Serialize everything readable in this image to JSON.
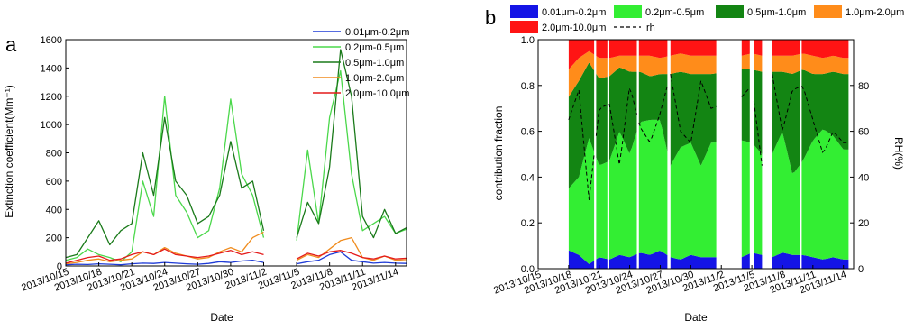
{
  "figure": {
    "panel_a_label": "a",
    "panel_b_label": "b"
  },
  "chart_data": [
    {
      "type": "line",
      "panel": "a",
      "xlabel": "Date",
      "ylabel": "Extinction coefficient(Mm⁻¹)",
      "ylim": [
        0,
        1600
      ],
      "yticks": [
        0,
        200,
        400,
        600,
        800,
        1000,
        1200,
        1400,
        1600
      ],
      "xlim": [
        "2013/10/15",
        "2013/11/15"
      ],
      "xticks": [
        "2013/10/15",
        "2013/10/18",
        "2013/10/21",
        "2013/10/24",
        "2013/10/27",
        "2013/10/30",
        "2013/11/2",
        "2013/11/5",
        "2013/11/8",
        "2013/11/11",
        "2013/11/14"
      ],
      "legend_position": "top-right",
      "series": [
        {
          "name": "0.01μm-0.2μm",
          "color": "#1f3bd6",
          "points": [
            [
              "2013/10/15",
              8
            ],
            [
              "2013/10/16",
              12
            ],
            [
              "2013/10/17",
              10
            ],
            [
              "2013/10/18",
              15
            ],
            [
              "2013/10/19",
              12
            ],
            [
              "2013/10/20",
              8
            ],
            [
              "2013/10/21",
              15
            ],
            [
              "2013/10/22",
              20
            ],
            [
              "2013/10/23",
              18
            ],
            [
              "2013/10/24",
              25
            ],
            [
              "2013/10/25",
              20
            ],
            [
              "2013/10/26",
              15
            ],
            [
              "2013/10/27",
              12
            ],
            [
              "2013/10/28",
              18
            ],
            [
              "2013/10/29",
              30
            ],
            [
              "2013/10/30",
              25
            ],
            [
              "2013/10/31",
              35
            ],
            [
              "2013/11/1",
              40
            ],
            [
              "2013/11/2",
              25
            ],
            [
              "2013/11/5",
              15
            ],
            [
              "2013/11/6",
              30
            ],
            [
              "2013/11/7",
              40
            ],
            [
              "2013/11/8",
              80
            ],
            [
              "2013/11/9",
              100
            ],
            [
              "2013/11/10",
              40
            ],
            [
              "2013/11/11",
              30
            ],
            [
              "2013/11/12",
              20
            ],
            [
              "2013/11/13",
              25
            ],
            [
              "2013/11/14",
              20
            ],
            [
              "2013/11/15",
              18
            ]
          ]
        },
        {
          "name": "0.2μm-0.5μm",
          "color": "#4bd84b",
          "points": [
            [
              "2013/10/15",
              40
            ],
            [
              "2013/10/16",
              60
            ],
            [
              "2013/10/17",
              120
            ],
            [
              "2013/10/18",
              80
            ],
            [
              "2013/10/19",
              60
            ],
            [
              "2013/10/20",
              30
            ],
            [
              "2013/10/21",
              100
            ],
            [
              "2013/10/22",
              600
            ],
            [
              "2013/10/23",
              350
            ],
            [
              "2013/10/24",
              1200
            ],
            [
              "2013/10/25",
              500
            ],
            [
              "2013/10/26",
              380
            ],
            [
              "2013/10/27",
              200
            ],
            [
              "2013/10/28",
              250
            ],
            [
              "2013/10/29",
              550
            ],
            [
              "2013/10/30",
              1180
            ],
            [
              "2013/10/31",
              650
            ],
            [
              "2013/11/1",
              500
            ],
            [
              "2013/11/2",
              200
            ],
            [
              "2013/11/5",
              180
            ],
            [
              "2013/11/6",
              820
            ],
            [
              "2013/11/7",
              300
            ],
            [
              "2013/11/8",
              1050
            ],
            [
              "2013/11/9",
              1380
            ],
            [
              "2013/11/10",
              650
            ],
            [
              "2013/11/11",
              250
            ],
            [
              "2013/11/12",
              300
            ],
            [
              "2013/11/13",
              350
            ],
            [
              "2013/11/14",
              230
            ],
            [
              "2013/11/15",
              260
            ]
          ]
        },
        {
          "name": "0.5μm-1.0μm",
          "color": "#1a7a1a",
          "points": [
            [
              "2013/10/15",
              60
            ],
            [
              "2013/10/16",
              80
            ],
            [
              "2013/10/17",
              200
            ],
            [
              "2013/10/18",
              320
            ],
            [
              "2013/10/19",
              150
            ],
            [
              "2013/10/20",
              250
            ],
            [
              "2013/10/21",
              300
            ],
            [
              "2013/10/22",
              800
            ],
            [
              "2013/10/23",
              500
            ],
            [
              "2013/10/24",
              1050
            ],
            [
              "2013/10/25",
              600
            ],
            [
              "2013/10/26",
              500
            ],
            [
              "2013/10/27",
              300
            ],
            [
              "2013/10/28",
              350
            ],
            [
              "2013/10/29",
              500
            ],
            [
              "2013/10/30",
              880
            ],
            [
              "2013/10/31",
              550
            ],
            [
              "2013/11/1",
              600
            ],
            [
              "2013/11/2",
              250
            ],
            [
              "2013/11/5",
              200
            ],
            [
              "2013/11/6",
              450
            ],
            [
              "2013/11/7",
              300
            ],
            [
              "2013/11/8",
              700
            ],
            [
              "2013/11/9",
              1530
            ],
            [
              "2013/11/10",
              1200
            ],
            [
              "2013/11/11",
              350
            ],
            [
              "2013/11/12",
              200
            ],
            [
              "2013/11/13",
              400
            ],
            [
              "2013/11/14",
              230
            ],
            [
              "2013/11/15",
              270
            ]
          ]
        },
        {
          "name": "1.0μm-2.0μm",
          "color": "#f08c1e",
          "points": [
            [
              "2013/10/15",
              15
            ],
            [
              "2013/10/16",
              25
            ],
            [
              "2013/10/17",
              40
            ],
            [
              "2013/10/18",
              50
            ],
            [
              "2013/10/19",
              30
            ],
            [
              "2013/10/20",
              40
            ],
            [
              "2013/10/21",
              50
            ],
            [
              "2013/10/22",
              100
            ],
            [
              "2013/10/23",
              80
            ],
            [
              "2013/10/24",
              130
            ],
            [
              "2013/10/25",
              90
            ],
            [
              "2013/10/26",
              70
            ],
            [
              "2013/10/27",
              50
            ],
            [
              "2013/10/28",
              60
            ],
            [
              "2013/10/29",
              100
            ],
            [
              "2013/10/30",
              130
            ],
            [
              "2013/10/31",
              100
            ],
            [
              "2013/11/1",
              200
            ],
            [
              "2013/11/2",
              240
            ],
            [
              "2013/11/5",
              40
            ],
            [
              "2013/11/6",
              80
            ],
            [
              "2013/11/7",
              60
            ],
            [
              "2013/11/8",
              120
            ],
            [
              "2013/11/9",
              180
            ],
            [
              "2013/11/10",
              200
            ],
            [
              "2013/11/11",
              60
            ],
            [
              "2013/11/12",
              40
            ],
            [
              "2013/11/13",
              70
            ],
            [
              "2013/11/14",
              40
            ],
            [
              "2013/11/15",
              45
            ]
          ]
        },
        {
          "name": "2.0μm-10.0μm",
          "color": "#e41a1a",
          "points": [
            [
              "2013/10/15",
              20
            ],
            [
              "2013/10/16",
              40
            ],
            [
              "2013/10/17",
              60
            ],
            [
              "2013/10/18",
              70
            ],
            [
              "2013/10/19",
              40
            ],
            [
              "2013/10/20",
              50
            ],
            [
              "2013/10/21",
              80
            ],
            [
              "2013/10/22",
              100
            ],
            [
              "2013/10/23",
              80
            ],
            [
              "2013/10/24",
              120
            ],
            [
              "2013/10/25",
              80
            ],
            [
              "2013/10/26",
              70
            ],
            [
              "2013/10/27",
              60
            ],
            [
              "2013/10/28",
              70
            ],
            [
              "2013/10/29",
              90
            ],
            [
              "2013/10/30",
              110
            ],
            [
              "2013/10/31",
              80
            ],
            [
              "2013/11/1",
              100
            ],
            [
              "2013/11/2",
              80
            ],
            [
              "2013/11/5",
              50
            ],
            [
              "2013/11/6",
              90
            ],
            [
              "2013/11/7",
              70
            ],
            [
              "2013/11/8",
              100
            ],
            [
              "2013/11/9",
              110
            ],
            [
              "2013/11/10",
              90
            ],
            [
              "2013/11/11",
              60
            ],
            [
              "2013/11/12",
              50
            ],
            [
              "2013/11/13",
              70
            ],
            [
              "2013/11/14",
              50
            ],
            [
              "2013/11/15",
              55
            ]
          ]
        }
      ]
    },
    {
      "type": "area",
      "stacked": true,
      "panel": "b",
      "xlabel": "Date",
      "ylabel": "contribution fraction",
      "ylim": [
        0,
        1.0
      ],
      "yticks": [
        0.0,
        0.2,
        0.4,
        0.6,
        0.8,
        1.0
      ],
      "y2label": "RH(%)",
      "y2lim": [
        0,
        100
      ],
      "y2ticks": [
        0,
        20,
        40,
        60,
        80
      ],
      "xlim": [
        "2013/10/15",
        "2013/11/15"
      ],
      "xticks": [
        "2013/10/15",
        "2013/10/18",
        "2013/10/21",
        "2013/10/24",
        "2013/10/27",
        "2013/10/30",
        "2013/11/2",
        "2013/11/5",
        "2013/11/8",
        "2013/11/11",
        "2013/11/14"
      ],
      "legend_position": "top",
      "data_segments": [
        [
          "2013/10/18",
          "2013/10/20.5"
        ],
        [
          "2013/10/20.7",
          "2013/10/21.8"
        ],
        [
          "2013/10/22",
          "2013/10/24.7"
        ],
        [
          "2013/10/24.9",
          "2013/10/27.7"
        ],
        [
          "2013/10/28",
          "2013/11/1.5"
        ],
        [
          "2013/11/4",
          "2013/11/4.8"
        ],
        [
          "2013/11/5.2",
          "2013/11/6"
        ],
        [
          "2013/11/7",
          "2013/11/9.7"
        ],
        [
          "2013/11/9.9",
          "2013/11/14.5"
        ]
      ],
      "dates": [
        "2013/10/18",
        "2013/10/19",
        "2013/10/20",
        "2013/10/21",
        "2013/10/22",
        "2013/10/23",
        "2013/10/24",
        "2013/10/25",
        "2013/10/26",
        "2013/10/27",
        "2013/10/28",
        "2013/10/29",
        "2013/10/30",
        "2013/10/31",
        "2013/11/1",
        "2013/11/4",
        "2013/11/5",
        "2013/11/6",
        "2013/11/7",
        "2013/11/8",
        "2013/11/9",
        "2013/11/10",
        "2013/11/11",
        "2013/11/12",
        "2013/11/13",
        "2013/11/14"
      ],
      "series": [
        {
          "name": "0.01μm-0.2μm",
          "color": "#1414e6",
          "values": [
            0.08,
            0.06,
            0.02,
            0.05,
            0.04,
            0.06,
            0.05,
            0.07,
            0.06,
            0.08,
            0.05,
            0.04,
            0.06,
            0.05,
            0.05,
            0.05,
            0.07,
            0.06,
            0.05,
            0.07,
            0.06,
            0.06,
            0.05,
            0.04,
            0.05,
            0.04
          ]
        },
        {
          "name": "0.2μm-0.5μm",
          "color": "#33ee33",
          "values": [
            0.27,
            0.34,
            0.55,
            0.4,
            0.43,
            0.54,
            0.45,
            0.57,
            0.59,
            0.57,
            0.4,
            0.49,
            0.49,
            0.4,
            0.5,
            0.51,
            0.48,
            0.44,
            0.45,
            0.53,
            0.35,
            0.41,
            0.51,
            0.57,
            0.53,
            0.48
          ]
        },
        {
          "name": "0.5μm-1.0μm",
          "color": "#138513",
          "values": [
            0.4,
            0.42,
            0.33,
            0.38,
            0.37,
            0.28,
            0.36,
            0.22,
            0.19,
            0.2,
            0.4,
            0.33,
            0.3,
            0.4,
            0.3,
            0.31,
            0.32,
            0.36,
            0.36,
            0.26,
            0.44,
            0.4,
            0.29,
            0.24,
            0.28,
            0.33
          ]
        },
        {
          "name": "1.0μm-2.0μm",
          "color": "#ff8c1a",
          "values": [
            0.12,
            0.1,
            0.05,
            0.09,
            0.08,
            0.05,
            0.07,
            0.07,
            0.09,
            0.07,
            0.08,
            0.08,
            0.08,
            0.08,
            0.08,
            0.06,
            0.07,
            0.07,
            0.07,
            0.07,
            0.08,
            0.07,
            0.08,
            0.07,
            0.07,
            0.07
          ]
        },
        {
          "name": "2.0μm-10.0μm",
          "color": "#ff1414",
          "values": [
            0.13,
            0.08,
            0.05,
            0.08,
            0.08,
            0.07,
            0.07,
            0.07,
            0.07,
            0.08,
            0.07,
            0.06,
            0.07,
            0.07,
            0.07,
            0.07,
            0.06,
            0.07,
            0.07,
            0.07,
            0.07,
            0.06,
            0.07,
            0.08,
            0.07,
            0.08
          ]
        }
      ],
      "rh_series": {
        "name": "rh",
        "color": "#000000",
        "style": "dashed",
        "values": [
          65,
          78,
          30,
          70,
          72,
          45,
          80,
          62,
          55,
          68,
          85,
          60,
          55,
          82,
          70,
          75,
          80,
          45,
          85,
          60,
          78,
          80,
          65,
          50,
          60,
          55
        ]
      }
    }
  ]
}
